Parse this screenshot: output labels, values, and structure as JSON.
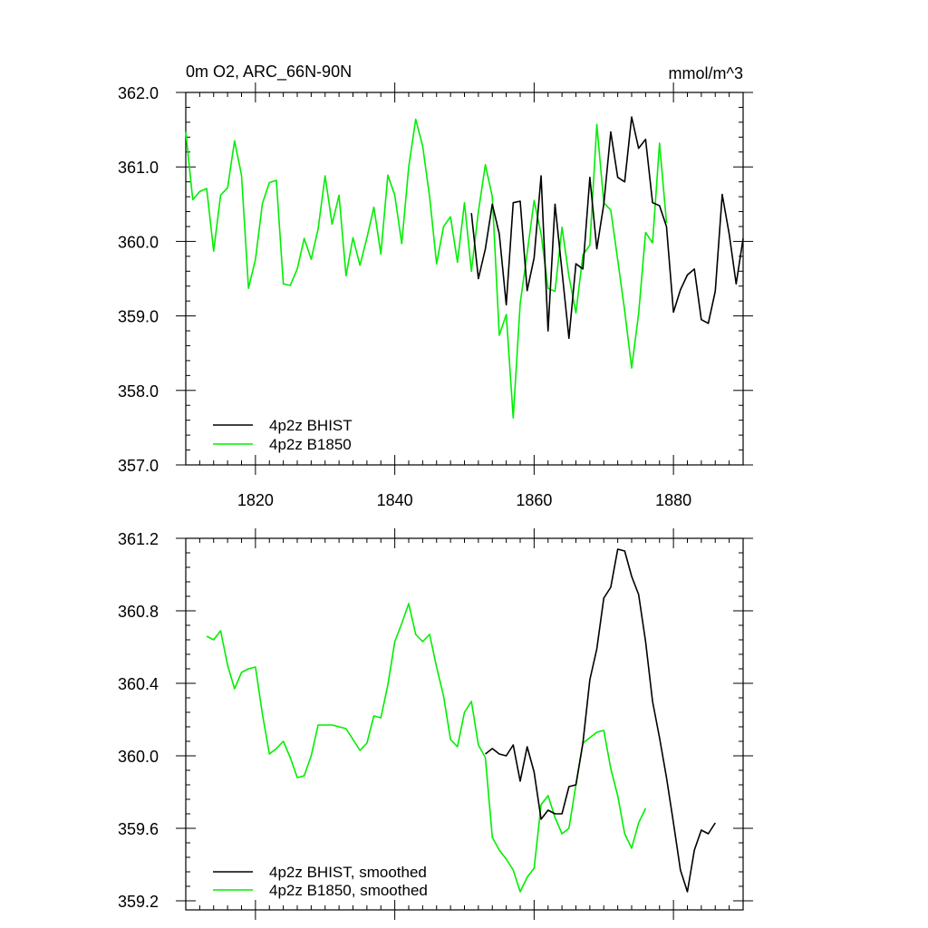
{
  "chart_data": [
    {
      "type": "line",
      "title_left": "0m O2, ARC_66N-90N",
      "title_right": "mmol/m^3",
      "xlim": [
        1810,
        1890
      ],
      "ylim": [
        357.0,
        362.0
      ],
      "x_ticks": [
        1820,
        1840,
        1860,
        1880
      ],
      "x_tick_labels": [
        "1820",
        "1840",
        "1860",
        "1880"
      ],
      "y_ticks": [
        357.0,
        358.0,
        359.0,
        360.0,
        361.0,
        362.0
      ],
      "y_tick_labels": [
        "357.0",
        "358.0",
        "359.0",
        "360.0",
        "361.0",
        "362.0"
      ],
      "legend_position": "bottom-left",
      "series": [
        {
          "name": "4p2z BHIST",
          "color": "#000000",
          "x": [
            1851,
            1852,
            1853,
            1854,
            1855,
            1856,
            1857,
            1858,
            1859,
            1860,
            1861,
            1862,
            1863,
            1864,
            1865,
            1866,
            1867,
            1868,
            1869,
            1870,
            1871,
            1872,
            1873,
            1874,
            1875,
            1876,
            1877,
            1878,
            1879,
            1880,
            1881,
            1882,
            1883,
            1884,
            1885,
            1886,
            1887,
            1888,
            1889,
            1890
          ],
          "y": [
            360.38,
            359.5,
            359.9,
            360.5,
            360.1,
            359.15,
            360.52,
            360.54,
            359.34,
            359.78,
            360.88,
            358.8,
            360.5,
            359.6,
            358.7,
            359.7,
            359.63,
            360.86,
            359.9,
            360.5,
            361.47,
            360.86,
            360.8,
            361.67,
            361.25,
            361.37,
            360.52,
            360.48,
            360.2,
            359.05,
            359.35,
            359.55,
            359.63,
            358.95,
            358.9,
            359.33,
            360.63,
            360.1,
            359.43,
            360.04
          ]
        },
        {
          "name": "4p2z B1850",
          "color": "#00ee00",
          "x": [
            1810,
            1811,
            1812,
            1813,
            1814,
            1815,
            1816,
            1817,
            1818,
            1819,
            1820,
            1821,
            1822,
            1823,
            1824,
            1825,
            1826,
            1827,
            1828,
            1829,
            1830,
            1831,
            1832,
            1833,
            1834,
            1835,
            1836,
            1837,
            1838,
            1839,
            1840,
            1841,
            1842,
            1843,
            1844,
            1845,
            1846,
            1847,
            1848,
            1849,
            1850,
            1851,
            1852,
            1853,
            1854,
            1855,
            1856,
            1857,
            1858,
            1859,
            1860,
            1861,
            1862,
            1863,
            1864,
            1865,
            1866,
            1867,
            1868,
            1869,
            1870,
            1871,
            1872,
            1873,
            1874,
            1875,
            1876,
            1877,
            1878,
            1879
          ],
          "y": [
            361.47,
            360.56,
            360.67,
            360.71,
            359.87,
            360.62,
            360.72,
            361.35,
            360.89,
            359.37,
            359.76,
            360.51,
            360.79,
            360.82,
            359.43,
            359.41,
            359.63,
            360.04,
            359.76,
            360.17,
            360.88,
            360.23,
            360.62,
            359.54,
            360.05,
            359.68,
            360.05,
            360.46,
            359.83,
            360.89,
            360.62,
            359.97,
            361.0,
            361.64,
            361.28,
            360.6,
            359.7,
            360.2,
            360.33,
            359.72,
            360.52,
            359.6,
            360.4,
            361.03,
            360.6,
            358.74,
            359.02,
            357.63,
            359.17,
            359.84,
            360.55,
            360.1,
            359.37,
            359.33,
            360.19,
            359.53,
            359.04,
            359.82,
            359.95,
            361.57,
            360.52,
            360.42,
            359.75,
            359.07,
            358.3,
            359.03,
            360.12,
            359.98,
            361.32,
            360.25
          ]
        }
      ]
    },
    {
      "type": "line",
      "xlim": [
        1810,
        1890
      ],
      "ylim": [
        359.15,
        361.2
      ],
      "x_ticks": [
        1820,
        1840,
        1860,
        1880
      ],
      "x_tick_labels": [],
      "y_ticks": [
        359.2,
        359.6,
        360.0,
        360.4,
        360.8,
        361.2
      ],
      "y_tick_labels": [
        "359.2",
        "359.6",
        "360.0",
        "360.4",
        "360.8",
        "361.2"
      ],
      "legend_position": "bottom-left",
      "series": [
        {
          "name": "4p2z BHIST, smoothed",
          "color": "#000000",
          "x": [
            1853,
            1854,
            1855,
            1856,
            1857,
            1858,
            1859,
            1860,
            1861,
            1862,
            1863,
            1864,
            1865,
            1866,
            1867,
            1868,
            1869,
            1870,
            1871,
            1872,
            1873,
            1874,
            1875,
            1876,
            1877,
            1878,
            1879,
            1880,
            1881,
            1882,
            1883,
            1884,
            1885,
            1886,
            1887
          ],
          "y": [
            360.01,
            360.04,
            360.01,
            360.0,
            360.06,
            359.86,
            360.05,
            359.91,
            359.65,
            359.7,
            359.68,
            359.68,
            359.83,
            359.84,
            360.07,
            360.42,
            360.59,
            360.87,
            360.93,
            361.14,
            361.13,
            360.99,
            360.89,
            360.63,
            360.3,
            360.1,
            359.88,
            359.63,
            359.37,
            359.25,
            359.48,
            359.59,
            359.57,
            359.63,
            null
          ]
        },
        {
          "name": "4p2z B1850, smoothed",
          "color": "#00ee00",
          "x": [
            1813,
            1814,
            1815,
            1816,
            1817,
            1818,
            1819,
            1820,
            1821,
            1822,
            1823,
            1824,
            1825,
            1826,
            1827,
            1828,
            1829,
            1830,
            1831,
            1832,
            1833,
            1834,
            1835,
            1836,
            1837,
            1838,
            1839,
            1840,
            1841,
            1842,
            1843,
            1844,
            1845,
            1846,
            1847,
            1848,
            1849,
            1850,
            1851,
            1852,
            1853,
            1854,
            1855,
            1856,
            1857,
            1858,
            1859,
            1860,
            1861,
            1862,
            1863,
            1864,
            1865,
            1866,
            1867,
            1868,
            1869,
            1870,
            1871,
            1872,
            1873,
            1874,
            1875,
            1876
          ],
          "y": [
            360.66,
            360.64,
            360.69,
            360.5,
            360.37,
            360.46,
            360.48,
            360.49,
            360.23,
            360.01,
            360.04,
            360.08,
            359.99,
            359.88,
            359.89,
            360.0,
            360.17,
            360.17,
            360.17,
            360.16,
            360.15,
            360.09,
            360.03,
            360.07,
            360.22,
            360.21,
            360.39,
            360.63,
            360.73,
            360.84,
            360.67,
            360.63,
            360.67,
            360.49,
            360.33,
            360.09,
            360.05,
            360.24,
            360.3,
            360.06,
            359.99,
            359.55,
            359.48,
            359.43,
            359.37,
            359.25,
            359.33,
            359.38,
            359.73,
            359.78,
            359.66,
            359.57,
            359.6,
            359.84,
            360.07,
            360.1,
            360.13,
            360.14,
            359.93,
            359.78,
            359.57,
            359.49,
            359.63,
            359.71
          ]
        }
      ]
    }
  ]
}
